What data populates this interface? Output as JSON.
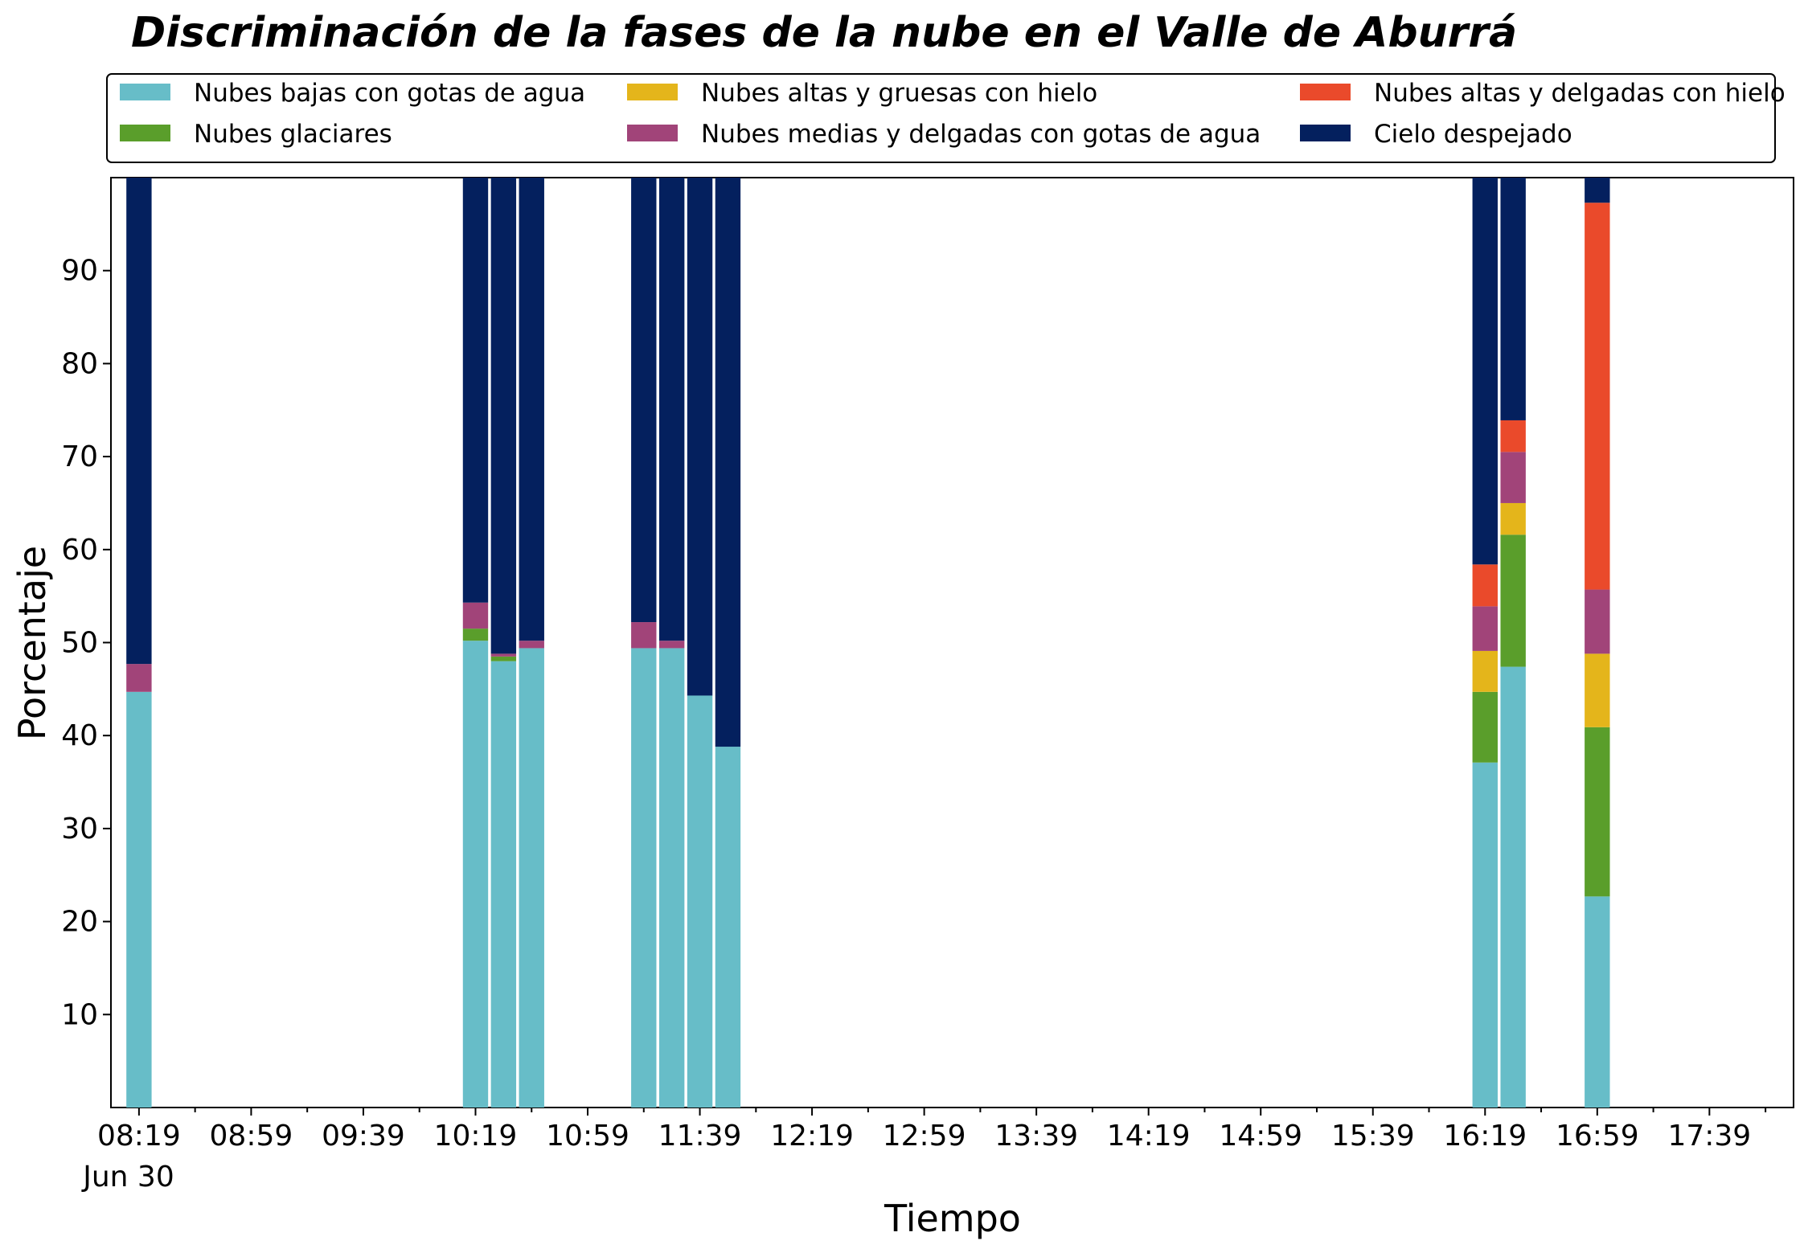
{
  "chart_data": {
    "type": "bar",
    "stacked": true,
    "title": "Discriminación de la fases de la nube en el Valle de Aburrá",
    "xlabel": "Tiempo",
    "ylabel": "Porcentaje",
    "ylim": [
      0,
      100
    ],
    "yticks": [
      10,
      20,
      30,
      40,
      50,
      60,
      70,
      80,
      90
    ],
    "x_ticks": [
      "08:19",
      "08:59",
      "09:39",
      "10:19",
      "10:59",
      "11:39",
      "12:19",
      "12:59",
      "13:39",
      "14:19",
      "14:59",
      "15:39",
      "16:19",
      "16:59",
      "17:39"
    ],
    "x_date_label": "Jun 30",
    "x_range": [
      "08:09",
      "18:09"
    ],
    "bar_width_minutes": 9,
    "legend_position": "top, outside plot, 3 columns",
    "grid": false,
    "x": [
      "08:19",
      "10:19",
      "10:29",
      "10:39",
      "11:19",
      "11:29",
      "11:39",
      "11:49",
      "16:19",
      "16:29",
      "16:59"
    ],
    "series": [
      {
        "name": "Nubes bajas con gotas de agua",
        "color": "#67BDC8",
        "values": [
          44.7,
          50.2,
          48.0,
          49.4,
          49.4,
          49.4,
          44.3,
          38.8,
          37.1,
          47.4,
          22.7
        ]
      },
      {
        "name": "Nubes glaciares",
        "color": "#5A9E2B",
        "values": [
          0,
          1.3,
          0.5,
          0,
          0,
          0,
          0,
          0,
          7.6,
          14.2,
          18.2
        ]
      },
      {
        "name": "Nubes altas y gruesas con hielo",
        "color": "#E4B51B",
        "values": [
          0,
          0,
          0,
          0,
          0,
          0,
          0,
          0,
          4.4,
          3.4,
          7.9
        ]
      },
      {
        "name": "Nubes medias y delgadas con gotas de agua",
        "color": "#A14479",
        "values": [
          3.0,
          2.8,
          0.3,
          0.8,
          2.8,
          0.8,
          0,
          0,
          4.8,
          5.5,
          6.9
        ]
      },
      {
        "name": "Nubes altas y delgadas con hielo",
        "color": "#EA4A2B",
        "values": [
          0,
          0,
          0,
          0,
          0,
          0,
          0,
          0,
          4.5,
          3.4,
          41.6
        ]
      },
      {
        "name": "Cielo despejado",
        "color": "#04205E",
        "values": [
          52.3,
          45.7,
          51.2,
          49.8,
          47.8,
          49.8,
          55.7,
          61.2,
          41.6,
          26.1,
          2.7
        ]
      }
    ]
  }
}
